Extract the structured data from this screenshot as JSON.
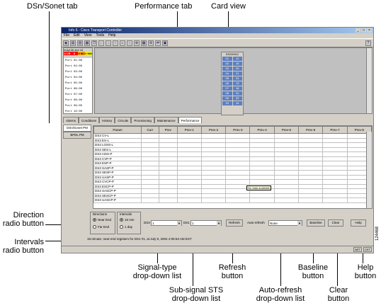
{
  "callouts": {
    "dsn_sonet_tab": "DSn/Sonet tab",
    "performance_tab": "Performance tab",
    "card_view": "Card view",
    "direction_radio": [
      "Direction",
      "radio button"
    ],
    "intervals_radio": [
      "Intervals",
      "radio button"
    ],
    "signal_type": [
      "Signal-type",
      "drop-down list"
    ],
    "sub_signal": [
      "Sub-signal STS",
      "drop-down list"
    ],
    "refresh": [
      "Refresh",
      "button"
    ],
    "auto_refresh": [
      "Auto-refresh",
      "drop-down list"
    ],
    "baseline": [
      "Baseline",
      "button"
    ],
    "clear": [
      "Clear",
      "button"
    ],
    "help": [
      "Help",
      "button"
    ],
    "figure_id": "124468"
  },
  "window": {
    "title": "Info 6 - Cisco Transport Controller",
    "menus": [
      "File",
      "Edit",
      "View",
      "Tools",
      "Help"
    ]
  },
  "shelf": {
    "node": "Indy136",
    "slot": "slot 15",
    "alarms": [
      "0 CR",
      "0",
      "0 MJ",
      "0 MN"
    ],
    "ports": [
      "Port 01:00",
      "Port 02:00",
      "Port 03:00",
      "Port 04:00",
      "Port 05:00",
      "Port 06:00",
      "Port 07:00",
      "Port 08:00",
      "Port 09:00",
      "Port 10:00"
    ]
  },
  "card": {
    "title": "DS3XM12",
    "ports": [
      "01",
      "12",
      "02",
      "15",
      "03",
      "20",
      "04",
      "21",
      "05",
      "24",
      "06",
      "13",
      "07",
      "18",
      "08",
      "31",
      "09",
      "32",
      "10",
      "14"
    ]
  },
  "tabs": [
    "Alarms",
    "Conditions",
    "History",
    "Circuits",
    "Provisioning",
    "Maintenance",
    "Performance"
  ],
  "subtabs": [
    "DSn/Sonet PM",
    "BFDL PM"
  ],
  "table": {
    "headers": [
      "Param",
      "Curr",
      "Prev",
      "Prev-1",
      "Prev-2",
      "Prev-3",
      "Prev-4",
      "Prev-5",
      "Prev-6",
      "Prev-7",
      "Prev-8"
    ],
    "params": [
      "DS3 CV-L",
      "DS3 ES-L",
      "DS3 LOSS-L",
      "DS3 SES-L",
      "DS3 AISS-P",
      "DS3 CVP-P",
      "DS3 ESP-P",
      "DS3 SASP-P",
      "DS3 SESP-P",
      "DS3 UASP-P",
      "DS3 CVCP-P",
      "DS3 ESCP-P",
      "DS3 SASCP-P",
      "DS3 SESCP-P",
      "DS3 UASCP-P"
    ],
    "no_data": "No data available"
  },
  "controls": {
    "directions_label": "Directions",
    "near_end": "Near End",
    "far_end": "Far End",
    "intervals_label": "Intervals",
    "min15": "15 min",
    "day1": "1 day",
    "ds3_label": "DS3",
    "ds3_value": "1",
    "ds1_label": "DS1",
    "ds1_value": "1",
    "refresh": "Refresh",
    "auto_refresh_label": "Auto-refresh",
    "auto_refresh_value": "None",
    "baseline": "Baseline",
    "clear": "Clear",
    "help": "Help"
  },
  "status_message": "15-minute, near-end registers for DS1 #1, at July 8, 2004 4:05:53 AM EST",
  "status_indicators": [
    "NET",
    "CKT"
  ],
  "colors": {
    "titlebar": "#0a246a",
    "port": "#5e7fbf",
    "critical": "#ff0000",
    "major": "#ffa500"
  }
}
